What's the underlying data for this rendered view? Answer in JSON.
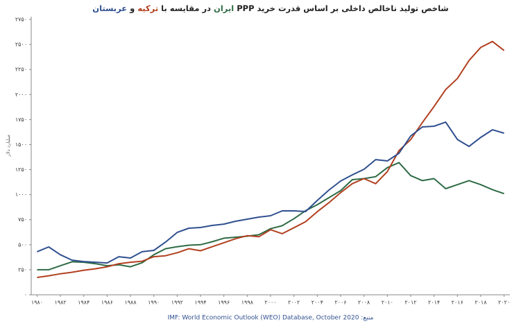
{
  "chart_data": {
    "type": "line",
    "title_prefix": "شاخص تولید ناخالص داخلی بر اساس قدرت خرید PPP",
    "title_joiner": "در مقایسه با",
    "title_and": "و",
    "y_label": "میلیارد دلار",
    "source": "منبع: IMF: World Economic Outlook (WEO) Database, October 2020",
    "x": [
      1980,
      1981,
      1982,
      1983,
      1984,
      1985,
      1986,
      1987,
      1988,
      1989,
      1990,
      1991,
      1992,
      1993,
      1994,
      1995,
      1996,
      1997,
      1998,
      1999,
      2000,
      2001,
      2002,
      2003,
      2004,
      2005,
      2006,
      2007,
      2008,
      2009,
      2010,
      2011,
      2012,
      2013,
      2014,
      2015,
      2016,
      2017,
      2018,
      2019,
      2020
    ],
    "series": [
      {
        "name": "ایران",
        "color": "#2e6b45",
        "values": [
          250,
          250,
          290,
          330,
          325,
          310,
          290,
          300,
          280,
          320,
          400,
          460,
          480,
          495,
          500,
          530,
          565,
          575,
          585,
          600,
          660,
          690,
          760,
          840,
          900,
          970,
          1040,
          1150,
          1160,
          1180,
          1270,
          1320,
          1190,
          1140,
          1160,
          1060,
          1100,
          1140,
          1100,
          1050,
          1010
        ]
      },
      {
        "name": "ترکیه",
        "color": "#b2401f",
        "values": [
          173,
          190,
          210,
          225,
          245,
          260,
          280,
          310,
          325,
          335,
          380,
          390,
          420,
          460,
          440,
          480,
          520,
          560,
          590,
          580,
          650,
          610,
          670,
          730,
          830,
          920,
          1020,
          1110,
          1160,
          1110,
          1230,
          1440,
          1550,
          1720,
          1880,
          2050,
          2160,
          2340,
          2470,
          2530,
          2440
        ]
      },
      {
        "name": "عربستان",
        "color": "#2f4f8f",
        "values": [
          430,
          478,
          400,
          346,
          332,
          325,
          318,
          380,
          367,
          430,
          443,
          526,
          623,
          665,
          672,
          693,
          706,
          734,
          755,
          776,
          790,
          838,
          838,
          831,
          942,
          1046,
          1136,
          1198,
          1253,
          1350,
          1337,
          1413,
          1586,
          1676,
          1683,
          1724,
          1551,
          1482,
          1572,
          1648,
          1614
        ]
      }
    ],
    "xlim": [
      1979.5,
      2020.5
    ],
    "xticks": [
      {
        "value": 1980,
        "label": "۱۹۸۰"
      },
      {
        "value": 1982,
        "label": "۱۹۸۲"
      },
      {
        "value": 1984,
        "label": "۱۹۸۴"
      },
      {
        "value": 1986,
        "label": "۱۹۸۶"
      },
      {
        "value": 1988,
        "label": "۱۹۸۸"
      },
      {
        "value": 1990,
        "label": "۱۹۹۰"
      },
      {
        "value": 1992,
        "label": "۱۹۹۲"
      },
      {
        "value": 1994,
        "label": "۱۹۹۴"
      },
      {
        "value": 1996,
        "label": "۱۹۹۶"
      },
      {
        "value": 1998,
        "label": "۱۹۹۸"
      },
      {
        "value": 2000,
        "label": "۲۰۰۰"
      },
      {
        "value": 2002,
        "label": "۲۰۰۲"
      },
      {
        "value": 2004,
        "label": "۲۰۰۴"
      },
      {
        "value": 2006,
        "label": "۲۰۰۶"
      },
      {
        "value": 2008,
        "label": "۲۰۰۸"
      },
      {
        "value": 2010,
        "label": "۲۰۱۰"
      },
      {
        "value": 2012,
        "label": "۲۰۱۲"
      },
      {
        "value": 2014,
        "label": "۲۰۱۴"
      },
      {
        "value": 2016,
        "label": "۲۰۱۶"
      },
      {
        "value": 2018,
        "label": "۲۰۱۸"
      },
      {
        "value": 2020,
        "label": "۲۰۲۰"
      }
    ],
    "ylim": [
      0,
      2750
    ],
    "yticks": [
      {
        "value": 0,
        "label": "۰"
      },
      {
        "value": 250,
        "label": "۲۵۰"
      },
      {
        "value": 500,
        "label": "۵۰۰"
      },
      {
        "value": 750,
        "label": "۷۵۰"
      },
      {
        "value": 1000,
        "label": "۱۰۰۰"
      },
      {
        "value": 1250,
        "label": "۱۲۵۰"
      },
      {
        "value": 1500,
        "label": "۱۵۰۰"
      },
      {
        "value": 1750,
        "label": "۱۷۵۰"
      },
      {
        "value": 2000,
        "label": "۲۰۰۰"
      },
      {
        "value": 2250,
        "label": "۲۲۵۰"
      },
      {
        "value": 2500,
        "label": "۲۵۰۰"
      },
      {
        "value": 2750,
        "label": "۲۷۵۰"
      }
    ]
  }
}
